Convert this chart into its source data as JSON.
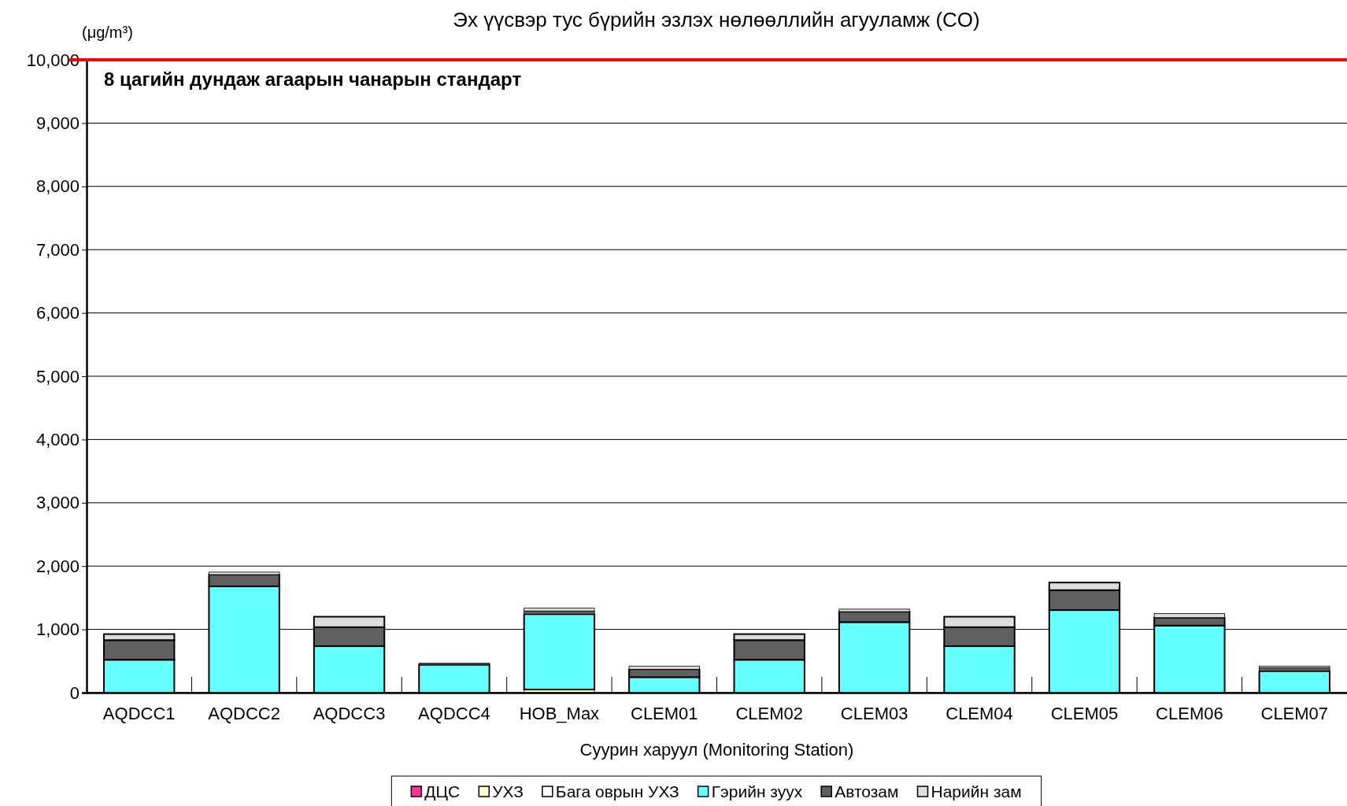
{
  "chart_data": {
    "type": "bar",
    "stacked": true,
    "title": "Эх үүсвэр тус бүрийн эзлэх нөлөөллийн агууламж (CO)",
    "ylabel": "(μg/m³)",
    "xlabel": "Суурин харуул (Monitoring Station)",
    "categories": [
      "AQDCC1",
      "AQDCC2",
      "AQDCC3",
      "AQDCC4",
      "HOB_Max",
      "CLEM01",
      "CLEM02",
      "CLEM03",
      "CLEM04",
      "CLEM05",
      "CLEM06",
      "CLEM07"
    ],
    "series": [
      {
        "name": "ДЦС",
        "color": "#ff3399",
        "values": [
          0,
          0,
          0,
          0,
          0,
          0,
          0,
          0,
          0,
          0,
          0,
          0
        ]
      },
      {
        "name": "УХЗ",
        "color": "#ffffcc",
        "values": [
          0,
          0,
          0,
          0,
          50,
          0,
          0,
          0,
          0,
          0,
          0,
          0
        ]
      },
      {
        "name": "Бага оврын УХЗ",
        "color": "#ffffff",
        "values": [
          0,
          0,
          0,
          0,
          0,
          0,
          0,
          0,
          0,
          0,
          0,
          0
        ]
      },
      {
        "name": "Гэрийн зуух",
        "color": "#66ffff",
        "values": [
          520,
          1680,
          735,
          440,
          1190,
          245,
          520,
          1115,
          735,
          1305,
          1060,
          340
        ]
      },
      {
        "name": "Автозам",
        "color": "#606060",
        "values": [
          310,
          185,
          300,
          25,
          50,
          125,
          310,
          165,
          300,
          315,
          125,
          55
        ]
      },
      {
        "name": "Нарийн зам",
        "color": "#dddddd",
        "values": [
          95,
          40,
          165,
          0,
          45,
          50,
          95,
          40,
          165,
          120,
          65,
          25
        ]
      }
    ],
    "ylim": [
      0,
      10000
    ],
    "yticks": [
      {
        "value": 0,
        "label": "0"
      },
      {
        "value": 1000,
        "label": "1,000"
      },
      {
        "value": 2000,
        "label": "2,000"
      },
      {
        "value": 3000,
        "label": "3,000"
      },
      {
        "value": 4000,
        "label": "4,000"
      },
      {
        "value": 5000,
        "label": "5,000"
      },
      {
        "value": 6000,
        "label": "6,000"
      },
      {
        "value": 7000,
        "label": "7,000"
      },
      {
        "value": 8000,
        "label": "8,000"
      },
      {
        "value": 9000,
        "label": "9,000"
      },
      {
        "value": 10000,
        "label": "10,000"
      }
    ],
    "grid": "y",
    "legend": "bottom",
    "ref_lines": [
      {
        "axis": "y",
        "value": 10000,
        "label": "8 цагийн дундаж агаарын чанарын стандарт",
        "color": "#ff0000"
      }
    ]
  }
}
